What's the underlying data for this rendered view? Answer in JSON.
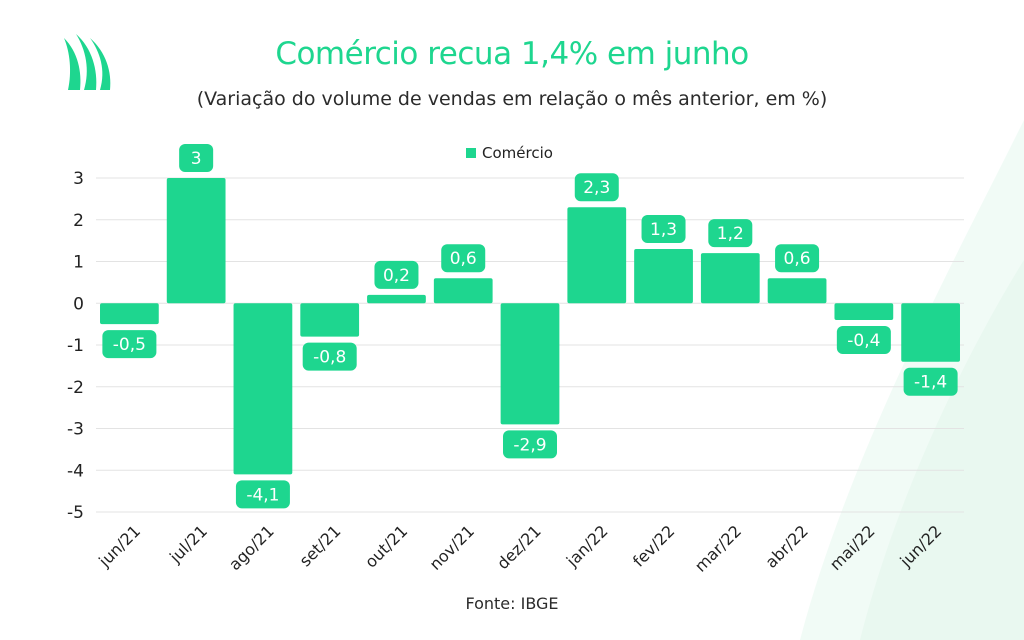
{
  "header": {
    "title": "Comércio recua 1,4% em junho",
    "subtitle": "(Variação do volume de vendas em relação o mês anterior, em %)"
  },
  "footer": {
    "source": "Fonte: IBGE"
  },
  "colors": {
    "accent": "#1ed68f",
    "bar": "#1ed68f",
    "label_bg": "#1ed68f",
    "grid": "#e3e3e3",
    "leaf": "#f1fbf6"
  },
  "chart_data": {
    "type": "bar",
    "title": "",
    "xlabel": "",
    "ylabel": "",
    "legend": {
      "entries": [
        "Comércio"
      ],
      "position": "top-center"
    },
    "ylim": [
      -5,
      3
    ],
    "yticks": [
      "3",
      "2",
      "1",
      "0",
      "-1",
      "-2",
      "-3",
      "-4",
      "-5"
    ],
    "ytick_values": [
      3,
      2,
      1,
      0,
      -1,
      -2,
      -3,
      -4,
      -5
    ],
    "grid": true,
    "categories": [
      "jun/21",
      "jul/21",
      "ago/21",
      "set/21",
      "out/21",
      "nov/21",
      "dez/21",
      "jan/22",
      "fev/22",
      "mar/22",
      "abr/22",
      "mai/22",
      "jun/22"
    ],
    "series": [
      {
        "name": "Comércio",
        "values": [
          -0.5,
          3,
          -4.1,
          -0.8,
          0.2,
          0.6,
          -2.9,
          2.3,
          1.3,
          1.2,
          0.6,
          -0.4,
          -1.4
        ],
        "labels": [
          "-0,5",
          "3",
          "-4,1",
          "-0,8",
          "0,2",
          "0,6",
          "-2,9",
          "2,3",
          "1,3",
          "1,2",
          "0,6",
          "-0,4",
          "-1,4"
        ]
      }
    ]
  }
}
